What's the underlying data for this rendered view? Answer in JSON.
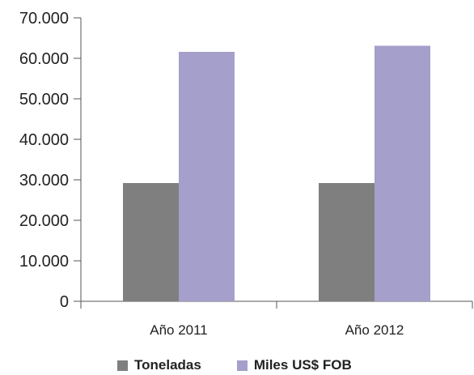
{
  "chart_data": {
    "type": "bar",
    "title": "",
    "xlabel": "",
    "ylabel": "",
    "categories": [
      "Año 2011",
      "Año 2012"
    ],
    "series": [
      {
        "name": "Toneladas",
        "values": [
          29200,
          29200
        ],
        "color": "#7f7f7f"
      },
      {
        "name": "Miles US$ FOB",
        "values": [
          61600,
          63100
        ],
        "color": "#a59fcb"
      }
    ],
    "ylim": [
      0,
      70000
    ],
    "yticks": [
      0,
      10000,
      20000,
      30000,
      40000,
      50000,
      60000,
      70000
    ],
    "ytick_labels": [
      "0",
      "10.000",
      "20.000",
      "30.000",
      "40.000",
      "50.000",
      "60.000",
      "70.000"
    ],
    "grid": false,
    "legend": "bottom"
  }
}
